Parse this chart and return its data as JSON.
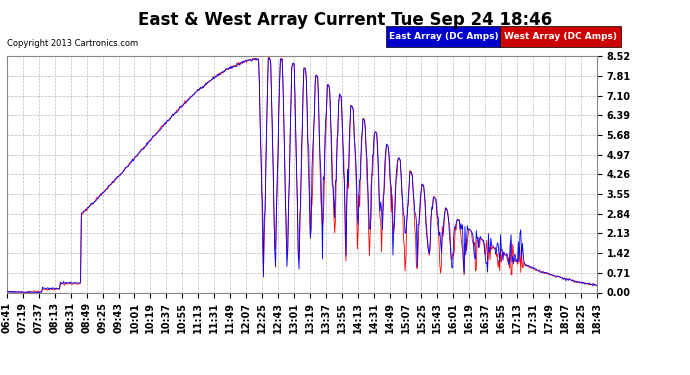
{
  "title": "East & West Array Current Tue Sep 24 18:46",
  "copyright": "Copyright 2013 Cartronics.com",
  "legend_east": "East Array (DC Amps)",
  "legend_west": "West Array (DC Amps)",
  "east_color": "#0000ff",
  "west_color": "#ff0000",
  "legend_east_bg": "#0000cc",
  "legend_west_bg": "#cc0000",
  "ylim": [
    0.0,
    8.52
  ],
  "yticks": [
    0.0,
    0.71,
    1.42,
    2.13,
    2.84,
    3.55,
    4.26,
    4.97,
    5.68,
    6.39,
    7.1,
    7.81,
    8.52
  ],
  "background_color": "#ffffff",
  "plot_bg_color": "#ffffff",
  "grid_color": "#bbbbbb",
  "title_fontsize": 12,
  "tick_fontsize": 7,
  "x_tick_labels": [
    "06:41",
    "07:19",
    "07:37",
    "08:13",
    "08:31",
    "08:49",
    "09:25",
    "09:43",
    "10:01",
    "10:19",
    "10:37",
    "10:55",
    "11:13",
    "11:31",
    "11:49",
    "12:07",
    "12:25",
    "12:43",
    "13:01",
    "13:19",
    "13:37",
    "13:55",
    "14:13",
    "14:31",
    "14:49",
    "15:07",
    "15:25",
    "15:43",
    "16:01",
    "16:19",
    "16:37",
    "16:55",
    "17:13",
    "17:31",
    "17:49",
    "18:07",
    "18:25",
    "18:43"
  ]
}
